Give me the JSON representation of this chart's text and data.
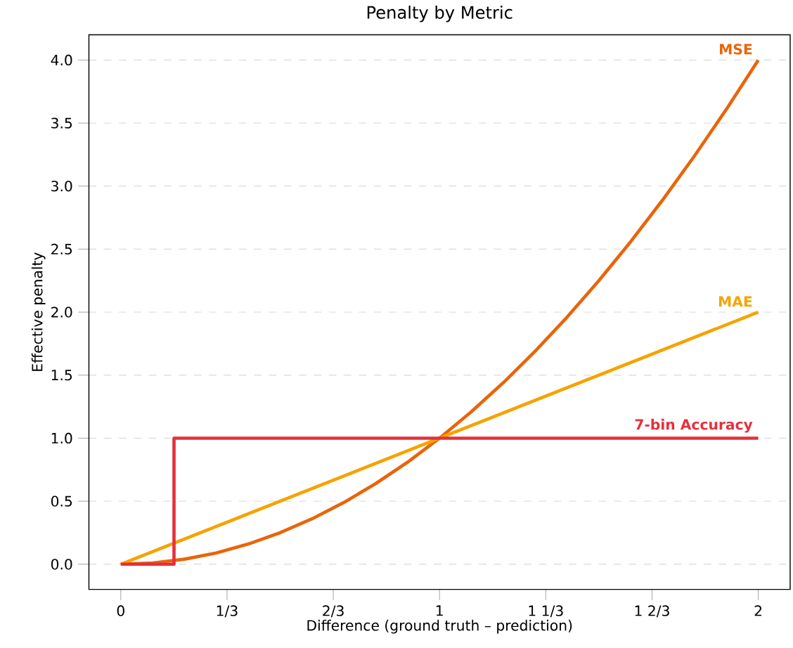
{
  "chart_data": {
    "type": "line",
    "title": "Penalty by Metric",
    "xlabel": "Difference (ground truth – prediction)",
    "ylabel": "Effective penalty",
    "xlim": [
      -0.1,
      2.1
    ],
    "ylim": [
      -0.2,
      4.2
    ],
    "xticks": [
      0,
      {
        "value": 0.3333,
        "label": "1/3"
      },
      {
        "value": 0.6667,
        "label": "2/3"
      },
      1,
      {
        "value": 1.3333,
        "label": "1 1/3"
      },
      {
        "value": 1.6667,
        "label": "1 2/3"
      },
      2
    ],
    "yticks": [
      {
        "value": 0,
        "label": "0.0"
      },
      {
        "value": 0.5,
        "label": "0.5"
      },
      {
        "value": 1,
        "label": "1.0"
      },
      {
        "value": 1.5,
        "label": "1.5"
      },
      {
        "value": 2,
        "label": "2.0"
      },
      {
        "value": 2.5,
        "label": "2.5"
      },
      {
        "value": 3,
        "label": "3.0"
      },
      {
        "value": 3.5,
        "label": "3.5"
      },
      {
        "value": 4,
        "label": "4.0"
      }
    ],
    "grid": "y",
    "legend": false,
    "series": [
      {
        "name": "MSE",
        "color": "#e8650a",
        "x": [
          0,
          0.1,
          0.2,
          0.3,
          0.4,
          0.5,
          0.6,
          0.7,
          0.8,
          0.9,
          1.0,
          1.1,
          1.2,
          1.3,
          1.4,
          1.5,
          1.6,
          1.7,
          1.8,
          1.9,
          2.0
        ],
        "values": [
          0,
          0.01,
          0.04,
          0.09,
          0.16,
          0.25,
          0.36,
          0.49,
          0.64,
          0.81,
          1.0,
          1.21,
          1.44,
          1.69,
          1.96,
          2.25,
          2.56,
          2.89,
          3.24,
          3.61,
          4.0
        ]
      },
      {
        "name": "MAE",
        "color": "#f5a300",
        "x": [
          0,
          2
        ],
        "values": [
          0,
          2
        ]
      },
      {
        "name": "7-bin Accuracy",
        "type": "step",
        "color": "#e5303c",
        "x": [
          0,
          0.167,
          2
        ],
        "values": [
          0,
          1,
          1
        ]
      }
    ]
  }
}
